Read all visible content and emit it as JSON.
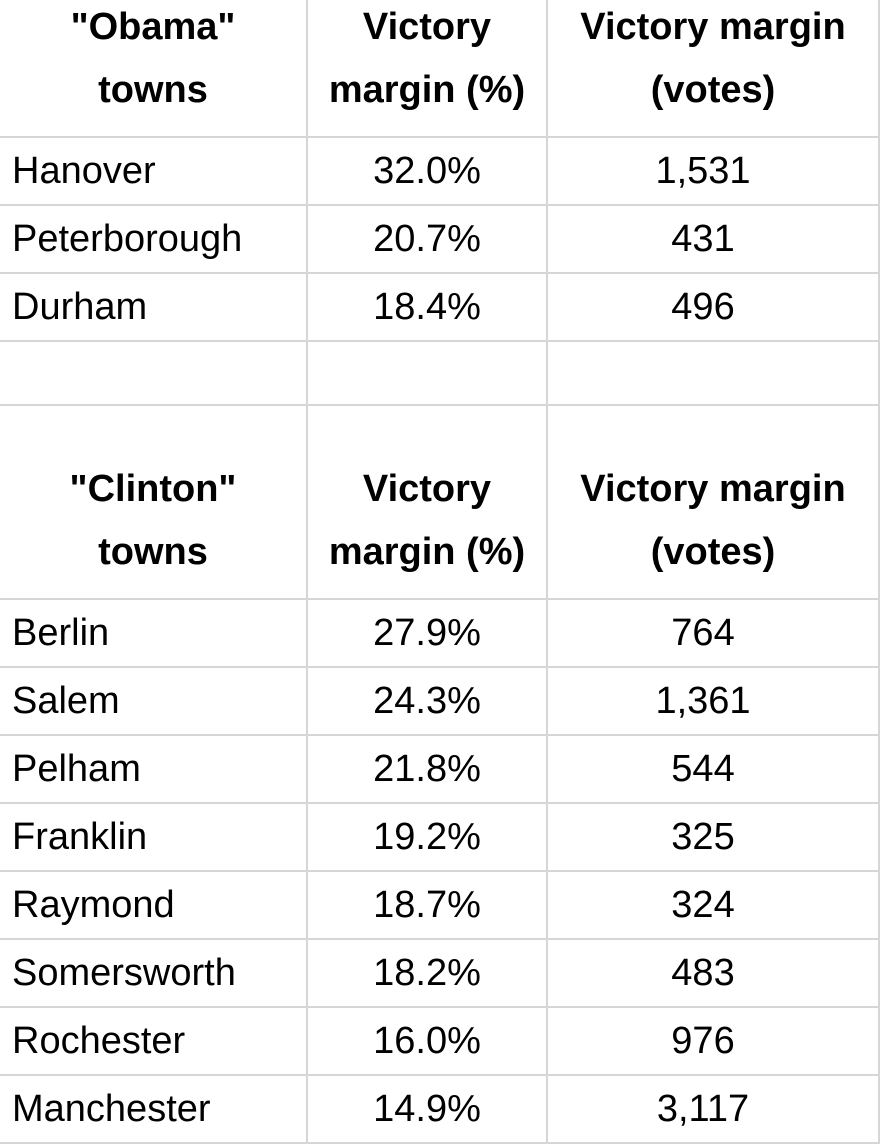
{
  "tables": [
    {
      "header": [
        [
          "\"Obama\"",
          "towns"
        ],
        [
          "Victory",
          "margin (%)"
        ],
        [
          "Victory margin",
          "(votes)"
        ]
      ],
      "rows": [
        [
          "Hanover",
          "32.0%",
          "1,531"
        ],
        [
          "Peterborough",
          "20.7%",
          "431"
        ],
        [
          "Durham",
          "18.4%",
          "496"
        ]
      ]
    },
    {
      "header": [
        [
          "\"Clinton\"",
          "towns"
        ],
        [
          "Victory",
          "margin (%)"
        ],
        [
          "Victory margin",
          "(votes)"
        ]
      ],
      "rows": [
        [
          "Berlin",
          "27.9%",
          "764"
        ],
        [
          "Salem",
          "24.3%",
          "1,361"
        ],
        [
          "Pelham",
          "21.8%",
          "544"
        ],
        [
          "Franklin",
          "19.2%",
          "325"
        ],
        [
          "Raymond",
          "18.7%",
          "324"
        ],
        [
          "Somersworth",
          "18.2%",
          "483"
        ],
        [
          "Rochester",
          "16.0%",
          "976"
        ],
        [
          "Manchester",
          "14.9%",
          "3,117"
        ]
      ]
    }
  ]
}
